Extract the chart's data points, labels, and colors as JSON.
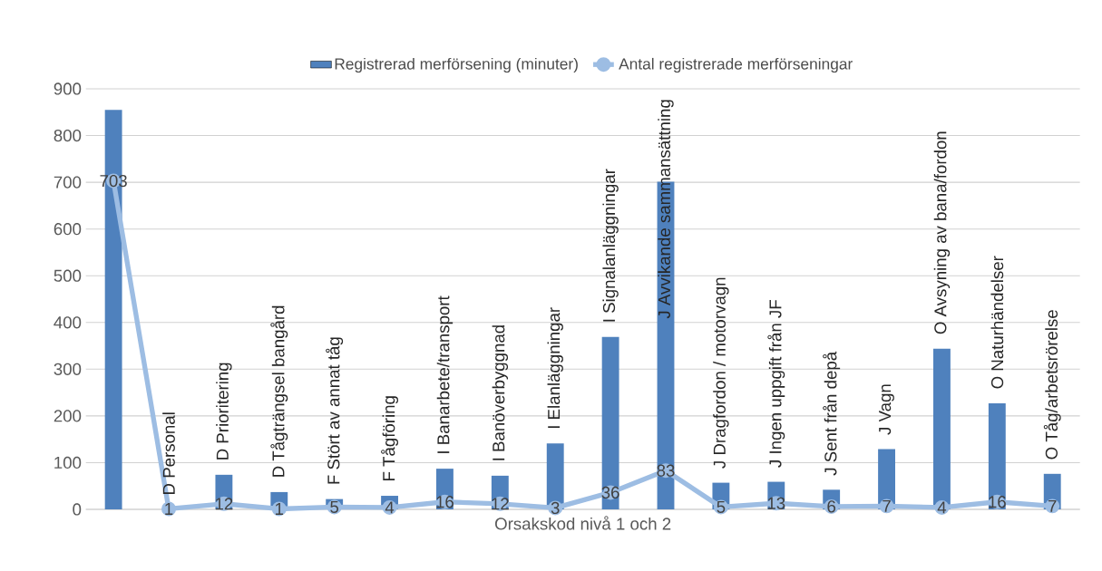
{
  "chart_data": {
    "type": "bar",
    "xlabel": "Orsakskod nivå 1 och 2",
    "categories": [
      null,
      "D Personal",
      "D Prioritering",
      "D Tågträngsel bangård",
      "F Stört av annat tåg",
      "F Tågföring",
      "I Banarbete/transport",
      "I Banöverbyggnad",
      "I Elanläggningar",
      "I Signalanläggningar",
      "J Avvikande sammansättning",
      "J Dragfordon / motorvagn",
      "J Ingen uppgift från JF",
      "J Sent från depå",
      "J Vagn",
      "O Avsyning av bana/fordon",
      "O Naturhändelser",
      "O Tåg/arbetsrörelse"
    ],
    "series": [
      {
        "name": "Registrerad merförsening (minuter)",
        "color": "#4f81bd",
        "values": [
          855,
          0,
          74,
          37,
          22,
          29,
          87,
          72,
          141,
          369,
          701,
          57,
          59,
          42,
          129,
          344,
          227,
          76
        ]
      },
      {
        "name": "Antal registrerade merförseningar",
        "type": "line",
        "color": "#9dbde3",
        "marker": "circle",
        "data_labels": true,
        "values": [
          703,
          1,
          12,
          1,
          5,
          4,
          16,
          12,
          3,
          36,
          83,
          5,
          13,
          6,
          7,
          4,
          16,
          7
        ]
      }
    ],
    "ylim": [
      0,
      900
    ],
    "yticks": [
      0,
      100,
      200,
      300,
      400,
      500,
      600,
      700,
      800,
      900
    ],
    "grid": "y",
    "legend": "top",
    "tick_labels": "y"
  }
}
